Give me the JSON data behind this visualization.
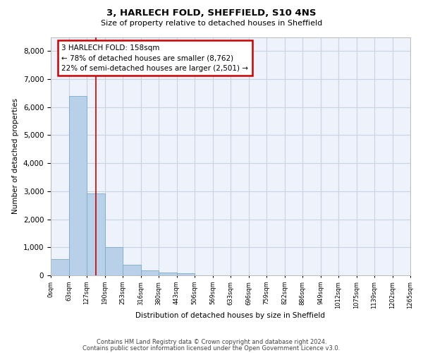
{
  "title": "3, HARLECH FOLD, SHEFFIELD, S10 4NS",
  "subtitle": "Size of property relative to detached houses in Sheffield",
  "xlabel": "Distribution of detached houses by size in Sheffield",
  "ylabel": "Number of detached properties",
  "bin_labels": [
    "0sqm",
    "63sqm",
    "127sqm",
    "190sqm",
    "253sqm",
    "316sqm",
    "380sqm",
    "443sqm",
    "506sqm",
    "569sqm",
    "633sqm",
    "696sqm",
    "759sqm",
    "822sqm",
    "886sqm",
    "949sqm",
    "1012sqm",
    "1075sqm",
    "1139sqm",
    "1202sqm",
    "1265sqm"
  ],
  "bar_heights": [
    570,
    6400,
    2920,
    1000,
    380,
    175,
    105,
    80,
    8,
    4,
    2,
    1,
    1,
    0,
    0,
    0,
    0,
    0,
    0,
    0
  ],
  "bar_color": "#b8d0e8",
  "bar_edge_color": "#7aabcc",
  "grid_color": "#c8d4e4",
  "background_color": "#eef2fa",
  "red_line_x": 2.5,
  "annotation_line1": "3 HARLECH FOLD: 158sqm",
  "annotation_line2": "← 78% of detached houses are smaller (8,762)",
  "annotation_line3": "22% of semi-detached houses are larger (2,501) →",
  "annotation_box_color": "#ffffff",
  "annotation_box_edge": "#cc0000",
  "red_line_color": "#cc0000",
  "ylim": [
    0,
    8500
  ],
  "yticks": [
    0,
    1000,
    2000,
    3000,
    4000,
    5000,
    6000,
    7000,
    8000
  ],
  "footer1": "Contains HM Land Registry data © Crown copyright and database right 2024.",
  "footer2": "Contains public sector information licensed under the Open Government Licence v3.0."
}
